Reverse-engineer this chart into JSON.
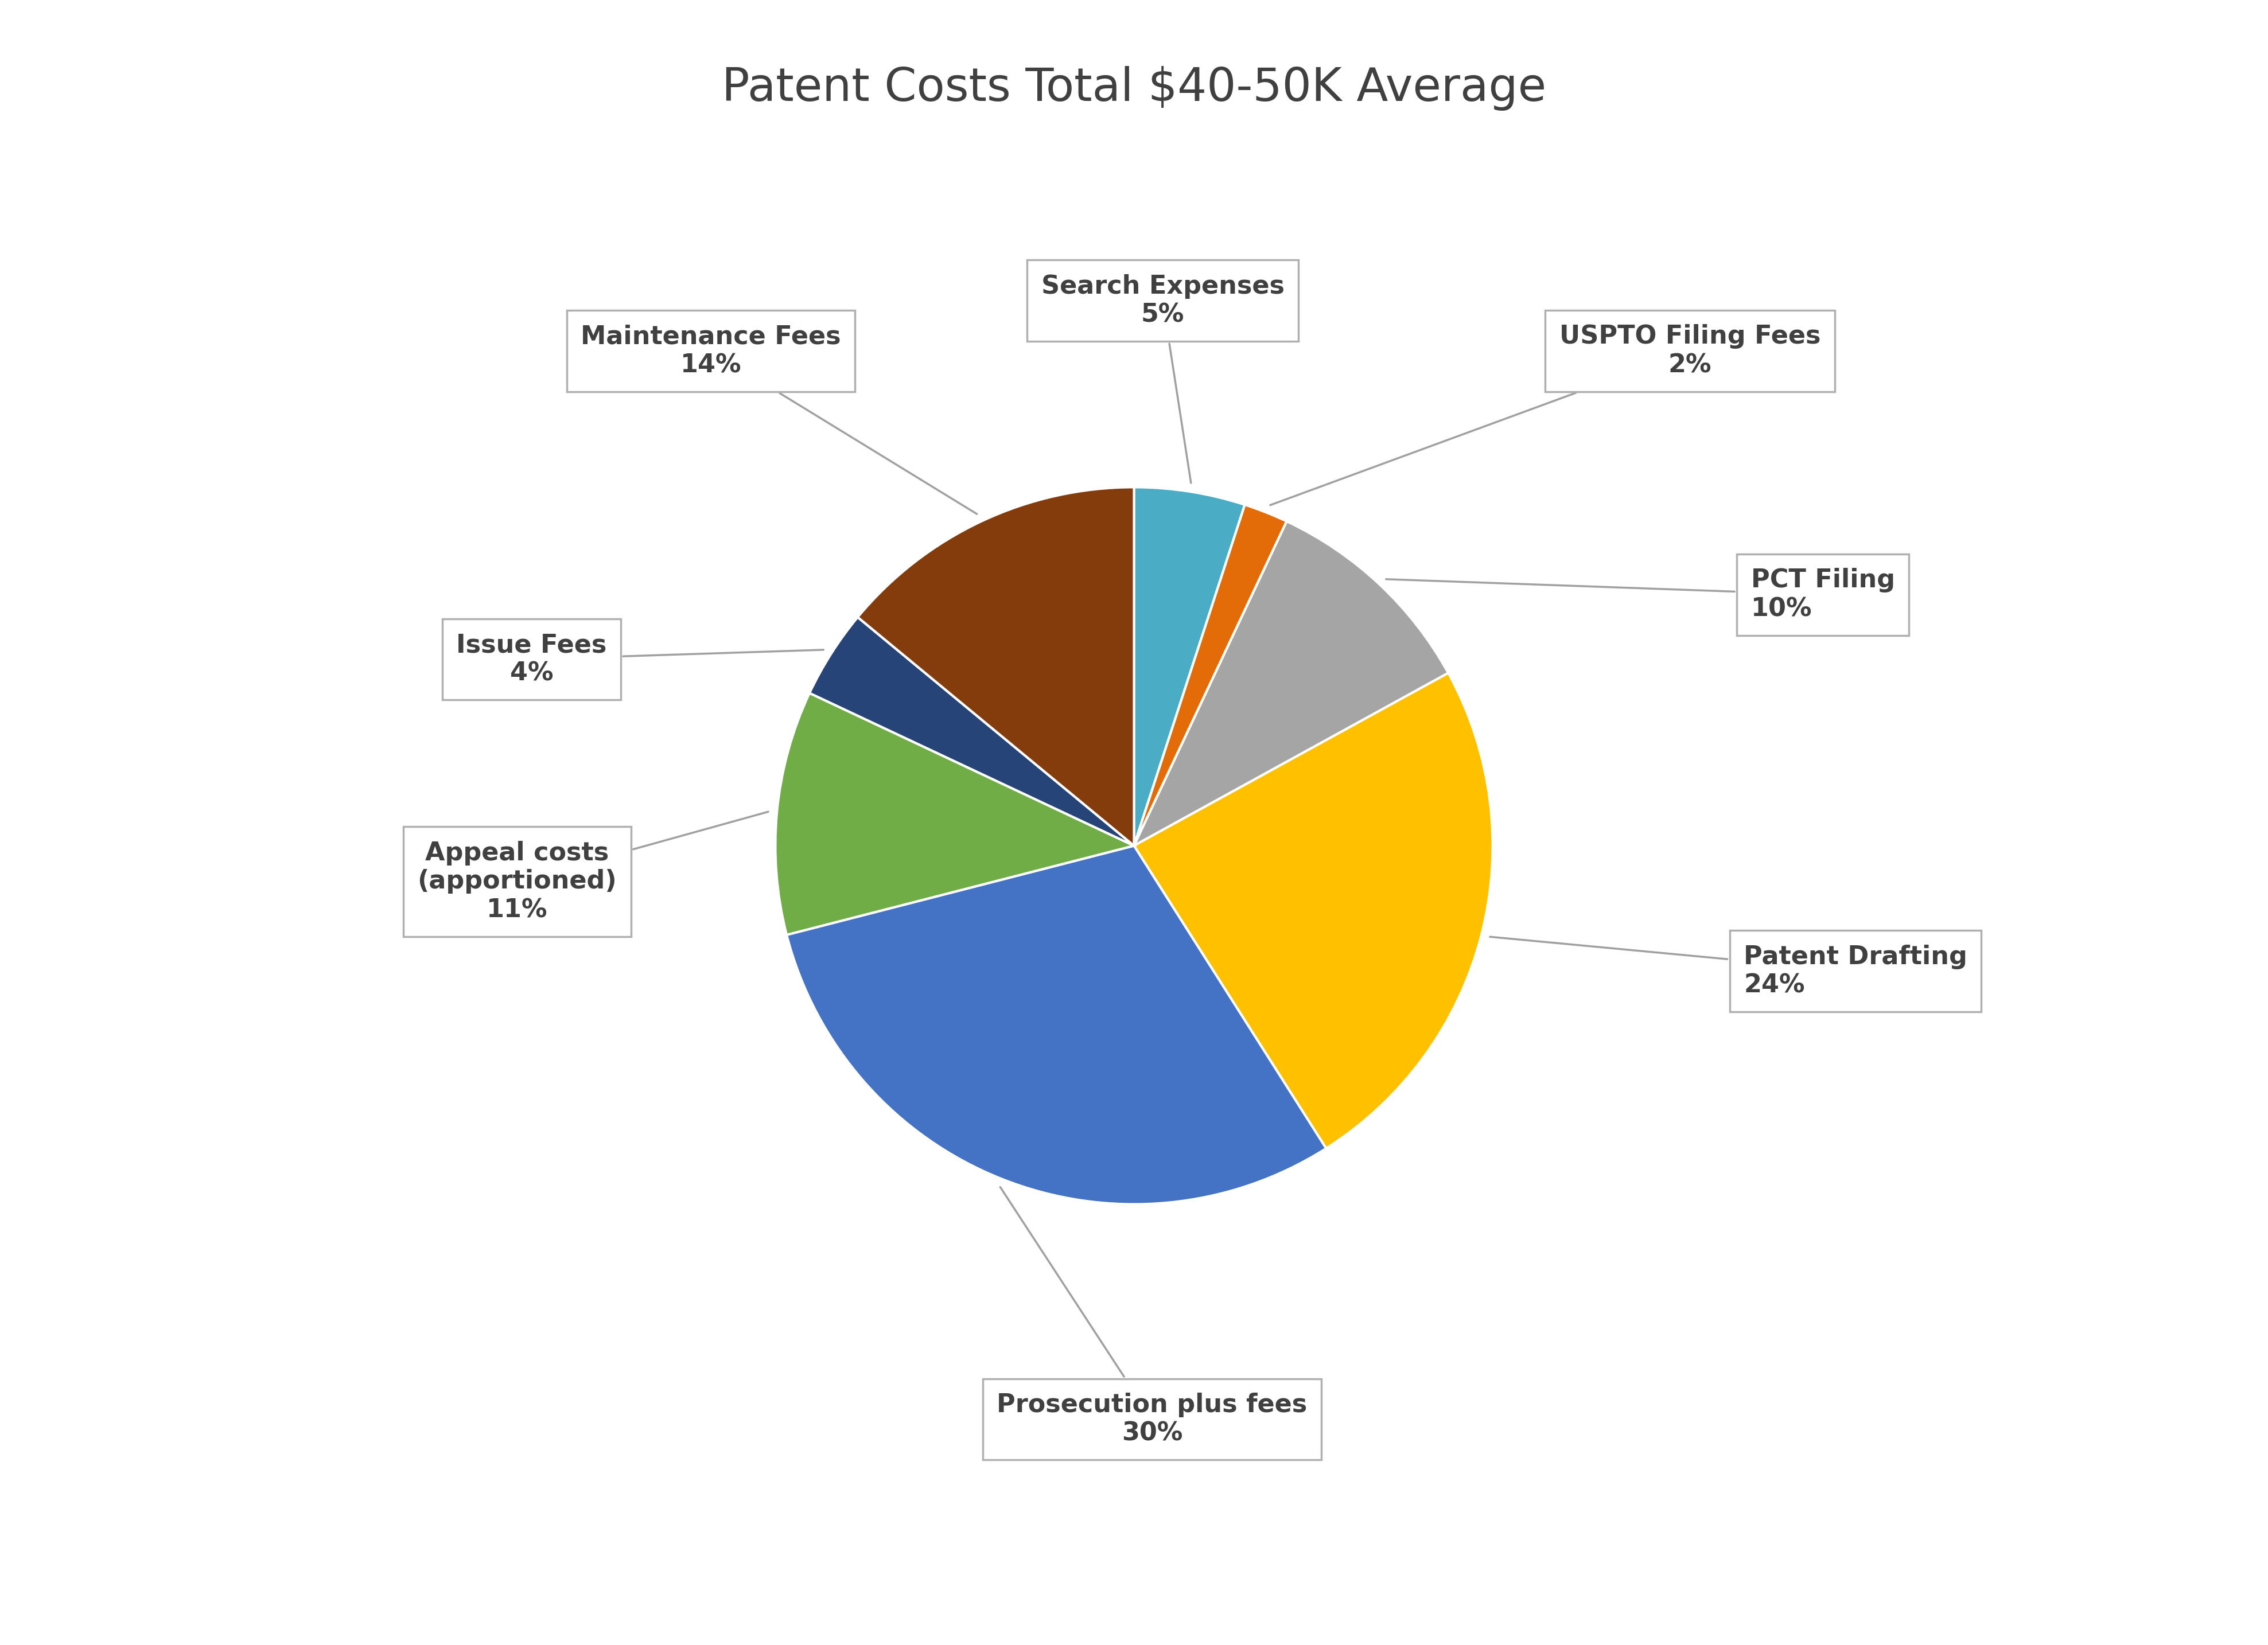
{
  "title": "Patent Costs Total $40-50K Average",
  "slices_ordered": [
    {
      "label": "Search Expenses",
      "pct": "5%",
      "value": 5,
      "color": "#4BACC6"
    },
    {
      "label": "USPTO Filing Fees",
      "pct": "2%",
      "value": 2,
      "color": "#E36C09"
    },
    {
      "label": "PCT Filing",
      "pct": "10%",
      "value": 10,
      "color": "#A5A5A5"
    },
    {
      "label": "Patent Drafting",
      "pct": "24%",
      "value": 24,
      "color": "#FFC000"
    },
    {
      "label": "Prosecution plus fees",
      "pct": "30%",
      "value": 30,
      "color": "#4472C4"
    },
    {
      "label": "Appeal costs\n(apportioned)",
      "pct": "11%",
      "value": 11,
      "color": "#70AD47"
    },
    {
      "label": "Issue Fees",
      "pct": "4%",
      "value": 4,
      "color": "#264478"
    },
    {
      "label": "Maintenance Fees",
      "pct": "14%",
      "value": 14,
      "color": "#843C0C"
    }
  ],
  "background_color": "#ffffff",
  "title_fontsize": 58,
  "label_fontsize": 32,
  "title_color": "#404040",
  "label_color": "#404040",
  "annot_data": [
    {
      "idx": 0,
      "text": "Search Expenses\n5%",
      "lxy": [
        0.08,
        1.52
      ],
      "ha": "center"
    },
    {
      "idx": 1,
      "text": "USPTO Filing Fees\n2%",
      "lxy": [
        1.55,
        1.38
      ],
      "ha": "center"
    },
    {
      "idx": 2,
      "text": "PCT Filing\n10%",
      "lxy": [
        1.72,
        0.7
      ],
      "ha": "left"
    },
    {
      "idx": 3,
      "text": "Patent Drafting\n24%",
      "lxy": [
        1.7,
        -0.35
      ],
      "ha": "left"
    },
    {
      "idx": 4,
      "text": "Prosecution plus fees\n30%",
      "lxy": [
        0.05,
        -1.6
      ],
      "ha": "center"
    },
    {
      "idx": 5,
      "text": "Appeal costs\n(apportioned)\n11%",
      "lxy": [
        -1.72,
        -0.1
      ],
      "ha": "center"
    },
    {
      "idx": 6,
      "text": "Issue Fees\n4%",
      "lxy": [
        -1.68,
        0.52
      ],
      "ha": "center"
    },
    {
      "idx": 7,
      "text": "Maintenance Fees\n14%",
      "lxy": [
        -1.18,
        1.38
      ],
      "ha": "center"
    }
  ]
}
